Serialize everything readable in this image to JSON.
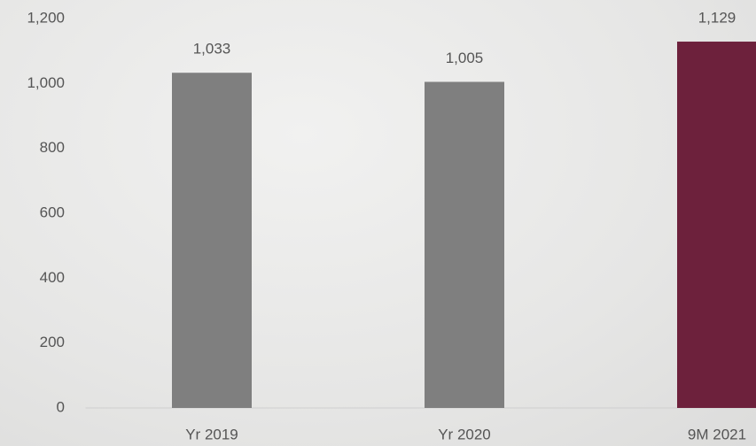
{
  "chart_data": {
    "type": "bar",
    "categories": [
      "Yr 2019",
      "Yr 2020",
      "9M 2021"
    ],
    "values": [
      1033,
      1005,
      1129
    ],
    "value_labels": [
      "1,033",
      "1,005",
      "1,129"
    ],
    "colors": [
      "#7f7f7f",
      "#7f7f7f",
      "#6d213c"
    ],
    "ylim": [
      0,
      1200
    ],
    "yticks": [
      0,
      200,
      400,
      600,
      800,
      {
        "value": 1000,
        "label": "1,000"
      },
      {
        "value": 1200,
        "label": "1,200"
      }
    ],
    "grid": false
  }
}
